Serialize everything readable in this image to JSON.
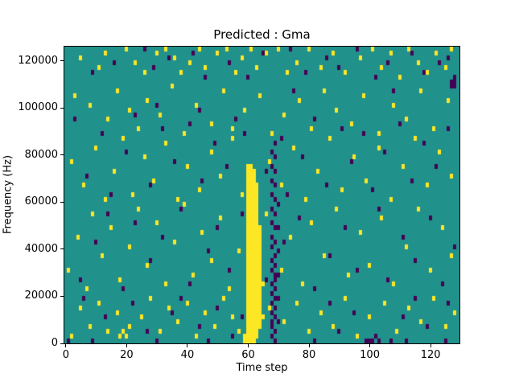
{
  "figure": {
    "background": "#ffffff"
  },
  "chart_data": {
    "type": "heatmap",
    "title": "Predicted : Gma",
    "xlabel": "Time step",
    "ylabel": "Frequency (Hz)",
    "x_ticks": [
      0,
      20,
      40,
      60,
      80,
      100,
      120
    ],
    "y_ticks": [
      0,
      20000,
      40000,
      60000,
      80000,
      100000,
      120000
    ],
    "grid": {
      "cols": 130,
      "rows": 63,
      "x_range": [
        -0.5,
        129.5
      ],
      "y_range": [
        0,
        126000
      ],
      "hz_per_row": 2000
    },
    "colors": {
      "mid": "#21918c",
      "high": "#fde725",
      "low": "#440154"
    },
    "legend": null,
    "high_band": [
      {
        "col": 60,
        "min": 0,
        "max": 37
      },
      {
        "col": 61,
        "min": 0,
        "max": 37
      },
      {
        "col": 62,
        "min": 0,
        "max": 36
      },
      {
        "col": 63,
        "min": 1,
        "max": 33
      },
      {
        "col": 64,
        "min": 3,
        "max": 24
      }
    ],
    "low_columns": [
      {
        "col": 68,
        "rows": [
          1,
          3,
          4,
          6,
          8,
          10,
          12,
          15,
          17,
          20,
          22,
          25,
          28,
          31,
          34,
          37,
          40
        ]
      },
      {
        "col": 69,
        "rows": [
          0,
          2,
          5,
          7,
          9,
          11,
          13,
          14,
          16,
          18,
          21,
          24,
          27,
          30,
          33,
          36,
          39,
          42
        ]
      },
      {
        "col": 70,
        "rows": [
          4,
          9,
          14,
          19,
          24,
          29
        ]
      }
    ],
    "high_points": [
      [
        5,
        60
      ],
      [
        11,
        58
      ],
      [
        13,
        61
      ],
      [
        20,
        62
      ],
      [
        23,
        59
      ],
      [
        26,
        57
      ],
      [
        30,
        61
      ],
      [
        33,
        62
      ],
      [
        36,
        60
      ],
      [
        38,
        57
      ],
      [
        41,
        59
      ],
      [
        44,
        62
      ],
      [
        46,
        58
      ],
      [
        50,
        61
      ],
      [
        53,
        62
      ],
      [
        56,
        57
      ],
      [
        58,
        60
      ],
      [
        61,
        62
      ],
      [
        63,
        58
      ],
      [
        66,
        61
      ],
      [
        70,
        62
      ],
      [
        73,
        57
      ],
      [
        76,
        59
      ],
      [
        80,
        62
      ],
      [
        84,
        58
      ],
      [
        88,
        61
      ],
      [
        92,
        57
      ],
      [
        97,
        60
      ],
      [
        101,
        62
      ],
      [
        104,
        58
      ],
      [
        107,
        61
      ],
      [
        110,
        56
      ],
      [
        113,
        62
      ],
      [
        116,
        59
      ],
      [
        119,
        57
      ],
      [
        122,
        61
      ],
      [
        125,
        58
      ],
      [
        127,
        62
      ],
      [
        3,
        52
      ],
      [
        8,
        50
      ],
      [
        14,
        47
      ],
      [
        17,
        53
      ],
      [
        21,
        49
      ],
      [
        24,
        45
      ],
      [
        27,
        51
      ],
      [
        31,
        48
      ],
      [
        35,
        54
      ],
      [
        39,
        44
      ],
      [
        43,
        50
      ],
      [
        48,
        46
      ],
      [
        52,
        53
      ],
      [
        55,
        45
      ],
      [
        59,
        49
      ],
      [
        64,
        52
      ],
      [
        68,
        44
      ],
      [
        72,
        48
      ],
      [
        77,
        51
      ],
      [
        81,
        45
      ],
      [
        85,
        53
      ],
      [
        89,
        49
      ],
      [
        94,
        46
      ],
      [
        98,
        52
      ],
      [
        103,
        44
      ],
      [
        108,
        50
      ],
      [
        112,
        47
      ],
      [
        117,
        53
      ],
      [
        121,
        45
      ],
      [
        126,
        51
      ],
      [
        2,
        38
      ],
      [
        6,
        33
      ],
      [
        10,
        41
      ],
      [
        13,
        30
      ],
      [
        16,
        36
      ],
      [
        19,
        43
      ],
      [
        22,
        31
      ],
      [
        26,
        39
      ],
      [
        29,
        34
      ],
      [
        33,
        42
      ],
      [
        37,
        30
      ],
      [
        40,
        37
      ],
      [
        44,
        32
      ],
      [
        48,
        40
      ],
      [
        51,
        35
      ],
      [
        55,
        43
      ],
      [
        58,
        31
      ],
      [
        67,
        38
      ],
      [
        71,
        33
      ],
      [
        75,
        41
      ],
      [
        79,
        30
      ],
      [
        83,
        36
      ],
      [
        87,
        43
      ],
      [
        91,
        32
      ],
      [
        95,
        39
      ],
      [
        99,
        34
      ],
      [
        103,
        41
      ],
      [
        107,
        30
      ],
      [
        111,
        37
      ],
      [
        115,
        43
      ],
      [
        119,
        33
      ],
      [
        123,
        40
      ],
      [
        127,
        35
      ],
      [
        1,
        15
      ],
      [
        4,
        22
      ],
      [
        7,
        11
      ],
      [
        9,
        27
      ],
      [
        12,
        18
      ],
      [
        15,
        24
      ],
      [
        18,
        13
      ],
      [
        21,
        20
      ],
      [
        24,
        28
      ],
      [
        27,
        16
      ],
      [
        30,
        25
      ],
      [
        33,
        12
      ],
      [
        36,
        21
      ],
      [
        39,
        29
      ],
      [
        42,
        14
      ],
      [
        45,
        23
      ],
      [
        48,
        17
      ],
      [
        51,
        26
      ],
      [
        54,
        11
      ],
      [
        57,
        19
      ],
      [
        66,
        27
      ],
      [
        71,
        15
      ],
      [
        74,
        22
      ],
      [
        78,
        12
      ],
      [
        81,
        25
      ],
      [
        85,
        18
      ],
      [
        89,
        28
      ],
      [
        93,
        14
      ],
      [
        97,
        23
      ],
      [
        100,
        16
      ],
      [
        104,
        26
      ],
      [
        108,
        12
      ],
      [
        112,
        20
      ],
      [
        116,
        28
      ],
      [
        120,
        15
      ],
      [
        124,
        24
      ],
      [
        127,
        18
      ],
      [
        2,
        1
      ],
      [
        5,
        7
      ],
      [
        8,
        3
      ],
      [
        11,
        8
      ],
      [
        14,
        2
      ],
      [
        17,
        6
      ],
      [
        18,
        1
      ],
      [
        19,
        2
      ],
      [
        20,
        1
      ],
      [
        21,
        3
      ],
      [
        25,
        5
      ],
      [
        28,
        9
      ],
      [
        31,
        2
      ],
      [
        34,
        7
      ],
      [
        37,
        4
      ],
      [
        40,
        8
      ],
      [
        43,
        1
      ],
      [
        46,
        6
      ],
      [
        49,
        3
      ],
      [
        52,
        9
      ],
      [
        55,
        5
      ],
      [
        57,
        2
      ],
      [
        59,
        0
      ],
      [
        59,
        1
      ],
      [
        65,
        5
      ],
      [
        65,
        12
      ],
      [
        67,
        7
      ],
      [
        72,
        4
      ],
      [
        76,
        8
      ],
      [
        80,
        2
      ],
      [
        84,
        6
      ],
      [
        88,
        3
      ],
      [
        92,
        9
      ],
      [
        96,
        1
      ],
      [
        100,
        5
      ],
      [
        105,
        8
      ],
      [
        109,
        2
      ],
      [
        113,
        7
      ],
      [
        117,
        4
      ],
      [
        121,
        9
      ],
      [
        125,
        3
      ],
      [
        128,
        6
      ]
    ],
    "low_points": [
      [
        9,
        57
      ],
      [
        16,
        59
      ],
      [
        26,
        62
      ],
      [
        29,
        58
      ],
      [
        34,
        60
      ],
      [
        42,
        61
      ],
      [
        46,
        56
      ],
      [
        54,
        59
      ],
      [
        60,
        56
      ],
      [
        65,
        61
      ],
      [
        74,
        62
      ],
      [
        79,
        57
      ],
      [
        86,
        60
      ],
      [
        90,
        58
      ],
      [
        96,
        62
      ],
      [
        102,
        56
      ],
      [
        106,
        59
      ],
      [
        114,
        61
      ],
      [
        118,
        57
      ],
      [
        123,
        59
      ],
      [
        126,
        60
      ],
      [
        127,
        54
      ],
      [
        127,
        55
      ],
      [
        128,
        55
      ],
      [
        128,
        56
      ],
      [
        128,
        54
      ],
      [
        3,
        47
      ],
      [
        7,
        35
      ],
      [
        12,
        44
      ],
      [
        15,
        31
      ],
      [
        20,
        40
      ],
      [
        23,
        48
      ],
      [
        28,
        33
      ],
      [
        32,
        45
      ],
      [
        36,
        38
      ],
      [
        41,
        46
      ],
      [
        45,
        34
      ],
      [
        49,
        42
      ],
      [
        53,
        37
      ],
      [
        56,
        47
      ],
      [
        59,
        44
      ],
      [
        66,
        36
      ],
      [
        71,
        43
      ],
      [
        73,
        31
      ],
      [
        78,
        39
      ],
      [
        82,
        47
      ],
      [
        86,
        33
      ],
      [
        91,
        45
      ],
      [
        94,
        38
      ],
      [
        98,
        44
      ],
      [
        101,
        32
      ],
      [
        105,
        40
      ],
      [
        110,
        46
      ],
      [
        114,
        34
      ],
      [
        118,
        42
      ],
      [
        122,
        37
      ],
      [
        126,
        45
      ],
      [
        30,
        50
      ],
      [
        44,
        49
      ],
      [
        75,
        53
      ],
      [
        108,
        53
      ],
      [
        5,
        13
      ],
      [
        10,
        21
      ],
      [
        14,
        27
      ],
      [
        19,
        11
      ],
      [
        23,
        25
      ],
      [
        28,
        17
      ],
      [
        32,
        22
      ],
      [
        38,
        28
      ],
      [
        41,
        12
      ],
      [
        47,
        19
      ],
      [
        50,
        24
      ],
      [
        54,
        15
      ],
      [
        58,
        27
      ],
      [
        66,
        13
      ],
      [
        72,
        21
      ],
      [
        77,
        26
      ],
      [
        82,
        11
      ],
      [
        87,
        18
      ],
      [
        92,
        24
      ],
      [
        96,
        15
      ],
      [
        103,
        28
      ],
      [
        106,
        13
      ],
      [
        111,
        22
      ],
      [
        115,
        17
      ],
      [
        120,
        26
      ],
      [
        124,
        12
      ],
      [
        128,
        20
      ],
      [
        1,
        0
      ],
      [
        6,
        9
      ],
      [
        9,
        0
      ],
      [
        13,
        5
      ],
      [
        22,
        8
      ],
      [
        27,
        2
      ],
      [
        30,
        0
      ],
      [
        35,
        6
      ],
      [
        38,
        9
      ],
      [
        44,
        3
      ],
      [
        47,
        0
      ],
      [
        50,
        7
      ],
      [
        55,
        1
      ],
      [
        58,
        5
      ],
      [
        82,
        0
      ],
      [
        87,
        8
      ],
      [
        90,
        2
      ],
      [
        95,
        6
      ],
      [
        99,
        0
      ],
      [
        100,
        0
      ],
      [
        101,
        0
      ],
      [
        102,
        1
      ],
      [
        103,
        0
      ],
      [
        107,
        0
      ],
      [
        111,
        5
      ],
      [
        112,
        0
      ],
      [
        115,
        9
      ],
      [
        119,
        3
      ],
      [
        125,
        0
      ],
      [
        126,
        8
      ]
    ]
  }
}
